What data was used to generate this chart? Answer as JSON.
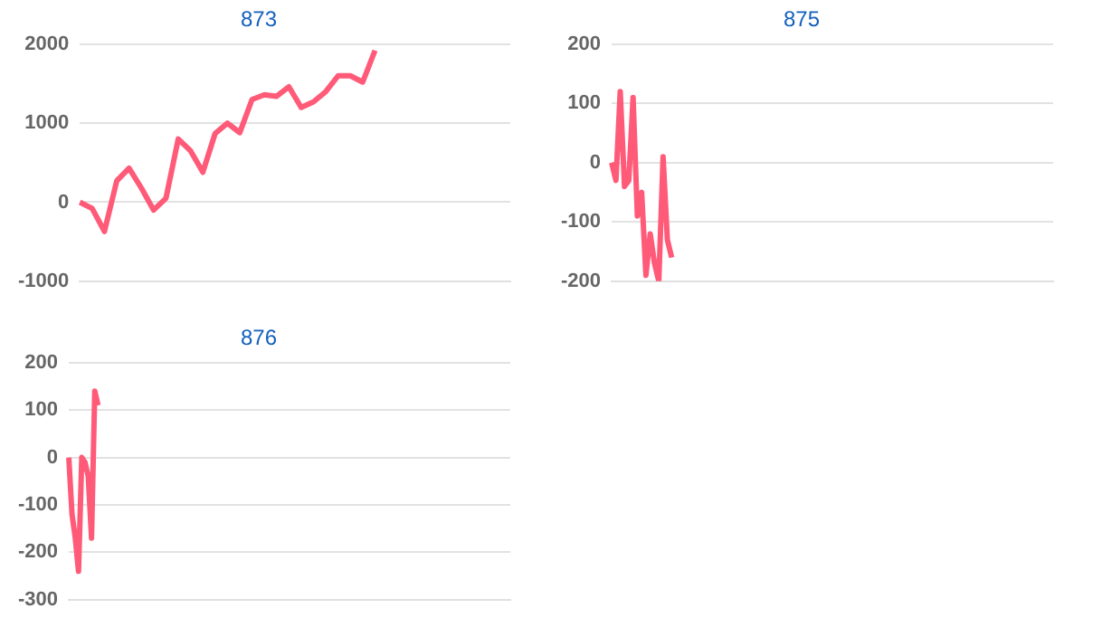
{
  "chart_data": [
    {
      "type": "line",
      "title": "873",
      "categories": [
        null,
        null,
        null,
        null,
        null,
        null,
        null,
        null,
        null,
        null,
        null,
        null,
        null,
        null,
        null,
        null,
        null,
        null,
        null,
        null,
        null,
        null,
        null,
        null,
        null,
        null,
        null,
        null,
        null,
        null,
        null,
        null,
        null,
        null,
        null,
        null
      ],
      "series": [
        {
          "color": "#ff5a78",
          "values": [
            0,
            -80,
            -370,
            270,
            430,
            180,
            -100,
            50,
            800,
            650,
            380,
            870,
            1000,
            880,
            1300,
            1360,
            1340,
            1460,
            1200,
            1270,
            1400,
            1600,
            1600,
            1520,
            1920,
            null,
            null,
            null,
            null,
            null,
            null,
            null,
            null,
            null,
            null,
            null
          ]
        }
      ],
      "ylim": [
        -1000,
        2000
      ],
      "yticks": [
        -1000,
        0,
        1000,
        2000
      ],
      "grid": "y",
      "tick_labels": "y",
      "marker": "none",
      "line_style": "solid"
    },
    {
      "type": "line",
      "title": "875",
      "categories": [
        null,
        null,
        null,
        null,
        null,
        null,
        null,
        null,
        null,
        null,
        null,
        null,
        null,
        null,
        null,
        null,
        null,
        null,
        null,
        null,
        null,
        null,
        null,
        null,
        null,
        null,
        null,
        null,
        null,
        null,
        null,
        null,
        null,
        null,
        null,
        null,
        null,
        null,
        null,
        null,
        null,
        null,
        null,
        null,
        null,
        null,
        null,
        null,
        null,
        null,
        null,
        null,
        null,
        null,
        null,
        null,
        null,
        null,
        null,
        null,
        null,
        null,
        null,
        null,
        null,
        null,
        null,
        null,
        null,
        null,
        null,
        null,
        null,
        null,
        null,
        null,
        null,
        null,
        null,
        null,
        null,
        null,
        null,
        null,
        null,
        null,
        null,
        null,
        null,
        null,
        null,
        null,
        null,
        null,
        null,
        null,
        null,
        null,
        null,
        null,
        null,
        null,
        null,
        null
      ],
      "series": [
        {
          "color": "#ff5a78",
          "values": [
            0,
            -30,
            120,
            -40,
            -30,
            110,
            -90,
            -50,
            -190,
            -120,
            -170,
            -200,
            10,
            -130,
            -160,
            null,
            null,
            null,
            null,
            null,
            null,
            null,
            null,
            null,
            null,
            null,
            null,
            null,
            null,
            null,
            null,
            null,
            null,
            null,
            null,
            null,
            null,
            null,
            null,
            null,
            null,
            null,
            null,
            null,
            null,
            null,
            null,
            null,
            null,
            null,
            null,
            null,
            null,
            null,
            null,
            null,
            null,
            null,
            null,
            null,
            null,
            null,
            null,
            null,
            null,
            null,
            null,
            null,
            null,
            null,
            null,
            null,
            null,
            null,
            null,
            null,
            null,
            null,
            null,
            null,
            null,
            null,
            null,
            null,
            null,
            null,
            null,
            null,
            null,
            null,
            null,
            null,
            null,
            null,
            null,
            null,
            null,
            null,
            null,
            null,
            null,
            null,
            null,
            null
          ]
        }
      ],
      "ylim": [
        -200,
        200
      ],
      "yticks": [
        -200,
        -100,
        0,
        100,
        200
      ],
      "grid": "y",
      "tick_labels": "y",
      "marker": "none",
      "line_style": "solid"
    },
    {
      "type": "line",
      "title": "876",
      "categories": [
        null,
        null,
        null,
        null,
        null,
        null,
        null,
        null,
        null,
        null,
        null,
        null,
        null,
        null,
        null,
        null,
        null,
        null,
        null,
        null,
        null,
        null,
        null,
        null,
        null,
        null,
        null,
        null,
        null,
        null,
        null,
        null,
        null,
        null,
        null,
        null,
        null,
        null,
        null,
        null,
        null,
        null,
        null,
        null,
        null,
        null,
        null,
        null,
        null,
        null,
        null,
        null,
        null,
        null,
        null,
        null,
        null,
        null,
        null,
        null,
        null,
        null,
        null,
        null,
        null,
        null,
        null,
        null,
        null,
        null,
        null,
        null,
        null,
        null,
        null,
        null,
        null,
        null,
        null,
        null,
        null,
        null,
        null,
        null,
        null,
        null,
        null,
        null,
        null,
        null,
        null,
        null,
        null,
        null,
        null,
        null,
        null,
        null,
        null,
        null,
        null,
        null,
        null,
        null,
        null,
        null,
        null,
        null,
        null,
        null,
        null,
        null,
        null,
        null,
        null,
        null,
        null,
        null,
        null,
        null,
        null,
        null,
        null,
        null,
        null,
        null,
        null,
        null,
        null,
        null,
        null,
        null,
        null,
        null,
        null,
        null,
        null
      ],
      "series": [
        {
          "color": "#ff5a78",
          "values": [
            0,
            -120,
            -170,
            -240,
            0,
            -10,
            -40,
            -170,
            140,
            110,
            null,
            null,
            null,
            null,
            null,
            null,
            null,
            null,
            null,
            null,
            null,
            null,
            null,
            null,
            null,
            null,
            null,
            null,
            null,
            null,
            null,
            null,
            null,
            null,
            null,
            null,
            null,
            null,
            null,
            null,
            null,
            null,
            null,
            null,
            null,
            null,
            null,
            null,
            null,
            null,
            null,
            null,
            null,
            null,
            null,
            null,
            null,
            null,
            null,
            null,
            null,
            null,
            null,
            null,
            null,
            null,
            null,
            null,
            null,
            null,
            null,
            null,
            null,
            null,
            null,
            null,
            null,
            null,
            null,
            null,
            null,
            null,
            null,
            null,
            null,
            null,
            null,
            null,
            null,
            null,
            null,
            null,
            null,
            null,
            null,
            null,
            null,
            null,
            null,
            null,
            null,
            null,
            null,
            null,
            null,
            null,
            null,
            null,
            null,
            null,
            null,
            null,
            null,
            null,
            null,
            null,
            null,
            null,
            null,
            null,
            null,
            null,
            null,
            null,
            null,
            null,
            null,
            null,
            null,
            null,
            null,
            null,
            null,
            null,
            null,
            null,
            null
          ]
        }
      ],
      "ylim": [
        -300,
        200
      ],
      "yticks": [
        -300,
        -200,
        -100,
        0,
        100,
        200
      ],
      "grid": "y",
      "tick_labels": "y",
      "marker": "none",
      "line_style": "solid"
    }
  ]
}
